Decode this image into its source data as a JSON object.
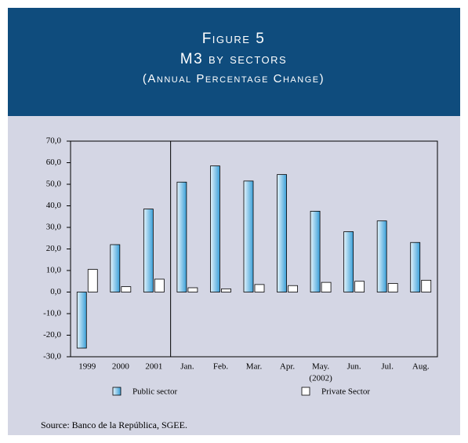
{
  "chart_data": {
    "type": "bar",
    "title": "Figure 5",
    "subtitle": "M3 by sectors",
    "subtitle2": "(Annual Percentage Change)",
    "categories": [
      "1999",
      "2000",
      "2001",
      "Jan.",
      "Feb.",
      "Mar.",
      "Apr.",
      "May.",
      "Jun.",
      "Jul.",
      "Aug."
    ],
    "annotation": "(2002)",
    "series": [
      {
        "name": "Public sector",
        "color": "#3a9fd8",
        "values": [
          -26,
          22,
          38.5,
          51,
          58.5,
          51.5,
          54.5,
          37.5,
          28,
          33,
          23
        ]
      },
      {
        "name": "Private Sector",
        "color": "#ffffff",
        "values": [
          10.5,
          2.5,
          6,
          2,
          1.5,
          3.5,
          3,
          4.5,
          5,
          4,
          5.5
        ]
      }
    ],
    "ylim": [
      -30,
      70
    ],
    "yticks": [
      {
        "value": -30,
        "label": "-30,0"
      },
      {
        "value": -20,
        "label": "-20,0"
      },
      {
        "value": -10,
        "label": "-10,0"
      },
      {
        "value": 0,
        "label": "0,0"
      },
      {
        "value": 10,
        "label": "10,0"
      },
      {
        "value": 20,
        "label": "20,0"
      },
      {
        "value": 30,
        "label": "30,0"
      },
      {
        "value": 40,
        "label": "40,0"
      },
      {
        "value": 50,
        "label": "50,0"
      },
      {
        "value": 60,
        "label": "60,0"
      },
      {
        "value": 70,
        "label": "70,0"
      }
    ],
    "grid": false,
    "source": "Source: Banco de la República, SGEE."
  }
}
